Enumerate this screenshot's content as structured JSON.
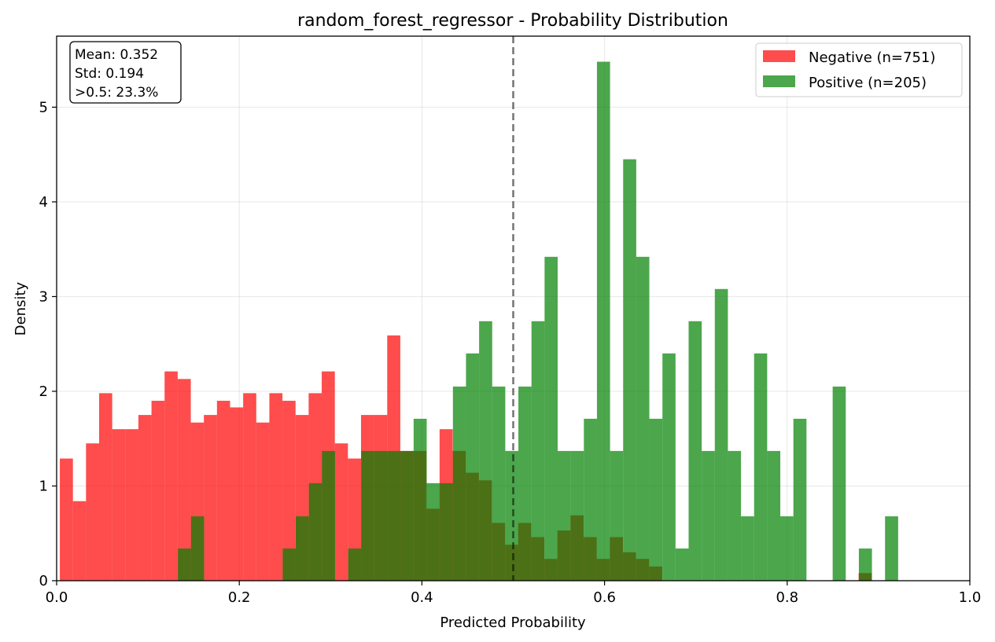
{
  "chart_data": {
    "type": "histogram",
    "title": "random_forest_regressor - Probability Distribution",
    "xlabel": "Predicted Probability",
    "ylabel": "Density",
    "xlim": [
      0.0,
      1.0
    ],
    "ylim": [
      0,
      5.75
    ],
    "xticks": [
      "0.0",
      "0.2",
      "0.4",
      "0.6",
      "0.8",
      "1.0"
    ],
    "xtick_values": [
      0.0,
      0.2,
      0.4,
      0.6,
      0.8,
      1.0
    ],
    "yticks": [
      "0",
      "1",
      "2",
      "3",
      "4",
      "5"
    ],
    "ytick_values": [
      0,
      1,
      2,
      3,
      4,
      5
    ],
    "grid": true,
    "legend_position": "top-right",
    "threshold_line": 0.5,
    "stats_box": {
      "mean": "Mean: 0.352",
      "std": "Std: 0.194",
      "above": ">0.5: 23.3%"
    },
    "series": [
      {
        "name": "Negative (n=751)",
        "color": "#ff0000",
        "opacity": 0.7,
        "bin_start": 0.0035,
        "bin_width": 0.01434,
        "values": [
          1.29,
          0.84,
          1.45,
          1.98,
          1.6,
          1.6,
          1.75,
          1.9,
          2.21,
          2.13,
          1.67,
          1.75,
          1.9,
          1.83,
          1.98,
          1.67,
          1.98,
          1.9,
          1.75,
          1.98,
          2.21,
          1.45,
          1.29,
          1.75,
          1.75,
          2.59,
          1.37,
          1.37,
          0.76,
          1.6,
          1.37,
          1.14,
          1.06,
          0.61,
          0.38,
          0.61,
          0.46,
          0.23,
          0.53,
          0.69,
          0.46,
          0.23,
          0.46,
          0.3,
          0.23,
          0.15,
          0.0,
          0.0,
          0.0,
          0.0,
          0.0,
          0.0,
          0.0,
          0.0,
          0.0,
          0.0,
          0.0,
          0.0,
          0.0,
          0.0,
          0.0,
          0.08
        ]
      },
      {
        "name": "Positive (n=205)",
        "color": "#008000",
        "opacity": 0.7,
        "bin_start": 0.1328,
        "bin_width": 0.01434,
        "values": [
          0.34,
          0.68,
          0.0,
          0.0,
          0.0,
          0.0,
          0.0,
          0.0,
          0.34,
          0.68,
          1.03,
          1.37,
          0.0,
          0.34,
          1.37,
          1.37,
          1.37,
          1.37,
          1.71,
          1.03,
          1.03,
          2.05,
          2.4,
          2.74,
          2.05,
          1.37,
          2.05,
          2.74,
          3.42,
          1.37,
          1.37,
          1.71,
          5.48,
          1.37,
          4.45,
          3.42,
          1.71,
          2.4,
          0.34,
          2.74,
          1.37,
          3.08,
          1.37,
          0.68,
          2.4,
          1.37,
          0.68,
          1.71,
          0.0,
          0.0,
          2.05,
          0.0,
          0.34,
          0.0,
          0.68
        ]
      }
    ]
  }
}
